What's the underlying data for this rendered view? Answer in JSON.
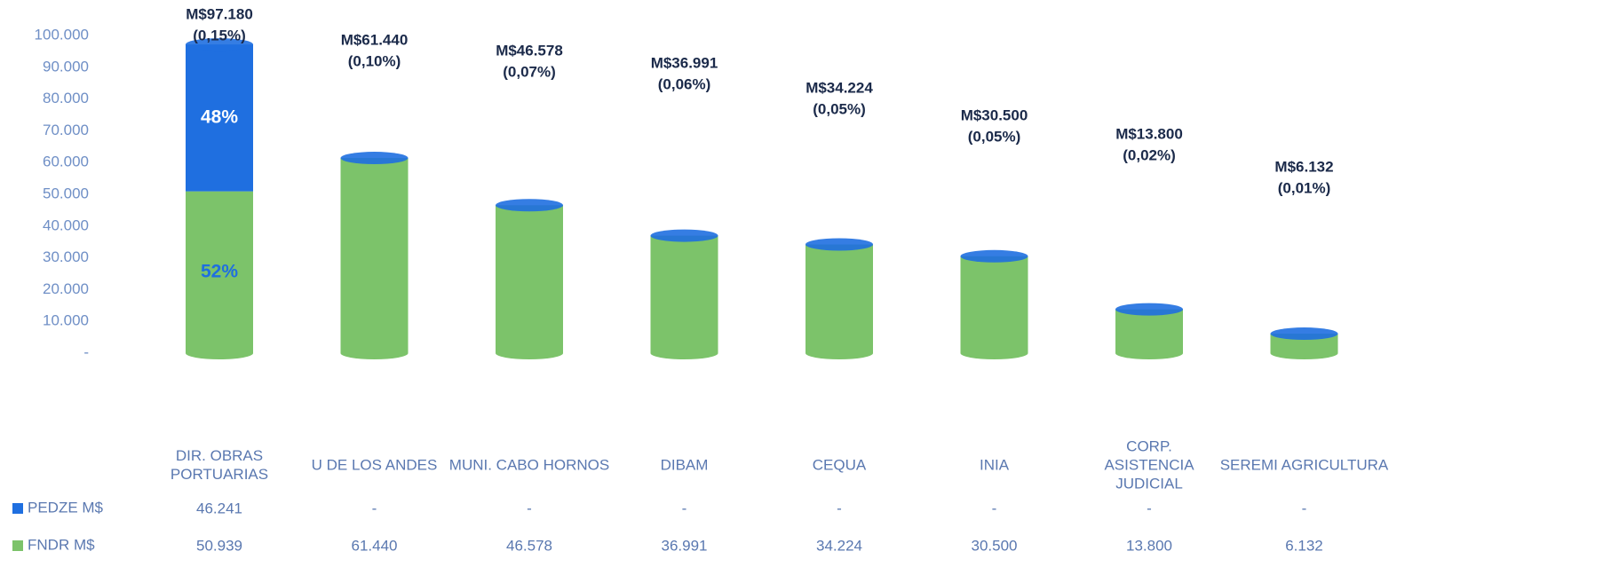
{
  "chart_data": {
    "type": "stacked_bar",
    "categories": [
      "DIR. OBRAS PORTUARIAS",
      "U DE LOS ANDES",
      "MUNI. CABO HORNOS",
      "DIBAM",
      "CEQUA",
      "INIA",
      "CORP. ASISTENCIA JUDICIAL",
      "SEREMI AGRICULTURA"
    ],
    "series": [
      {
        "name": "PEDZE M$",
        "color": "#1f6fe0",
        "values": [
          46241,
          0,
          0,
          0,
          0,
          0,
          0,
          0
        ],
        "value_labels": [
          "46.241",
          "-",
          "-",
          "-",
          "-",
          "-",
          "-",
          "-"
        ],
        "share_labels": [
          "48%",
          null,
          null,
          null,
          null,
          null,
          null,
          null
        ]
      },
      {
        "name": "FNDR M$",
        "color": "#7cc36a",
        "values": [
          50939,
          61440,
          46578,
          36991,
          34224,
          30500,
          13800,
          6132
        ],
        "value_labels": [
          "50.939",
          "61.440",
          "46.578",
          "36.991",
          "34.224",
          "30.500",
          "13.800",
          "6.132"
        ],
        "share_labels": [
          "52%",
          null,
          null,
          null,
          null,
          null,
          null,
          null
        ]
      }
    ],
    "totals": [
      97180,
      61440,
      46578,
      36991,
      34224,
      30500,
      13800,
      6132
    ],
    "total_labels": [
      "M$97.180",
      "M$61.440",
      "M$46.578",
      "M$36.991",
      "M$34.224",
      "M$30.500",
      "M$13.800",
      "M$6.132"
    ],
    "total_share_labels": [
      "(0,15%)",
      "(0,10%)",
      "(0,07%)",
      "(0,06%)",
      "(0,05%)",
      "(0,05%)",
      "(0,02%)",
      "(0,01%)"
    ],
    "ylim": [
      0,
      100000
    ],
    "yticks": [
      {
        "value": 0,
        "label": "-"
      },
      {
        "value": 10000,
        "label": "10.000"
      },
      {
        "value": 20000,
        "label": "20.000"
      },
      {
        "value": 30000,
        "label": "30.000"
      },
      {
        "value": 40000,
        "label": "40.000"
      },
      {
        "value": 50000,
        "label": "50.000"
      },
      {
        "value": 60000,
        "label": "60.000"
      },
      {
        "value": 70000,
        "label": "70.000"
      },
      {
        "value": 80000,
        "label": "80.000"
      },
      {
        "value": 90000,
        "label": "90.000"
      },
      {
        "value": 100000,
        "label": "100.000"
      }
    ],
    "grid": false
  }
}
